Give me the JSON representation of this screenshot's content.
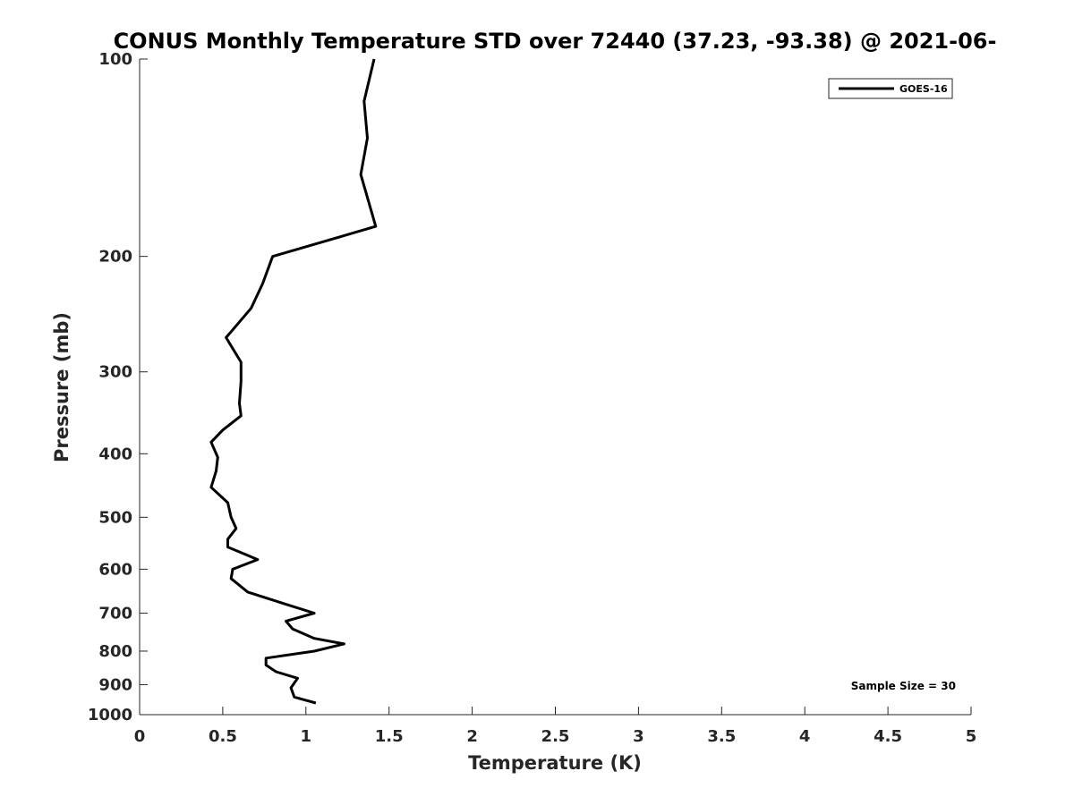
{
  "chart_data": {
    "type": "line",
    "title": "CONUS Monthly Temperature STD over 72440 (37.23, -93.38) @ 2021-06-",
    "xlabel": "Temperature (K)",
    "ylabel": "Pressure (mb)",
    "xlim": [
      0,
      5
    ],
    "ylim": [
      1000,
      100
    ],
    "yscale": "log",
    "y_reversed": true,
    "x_ticks": [
      "0",
      "0.5",
      "1",
      "1.5",
      "2",
      "2.5",
      "3",
      "3.5",
      "4",
      "4.5",
      "5"
    ],
    "y_ticks": [
      "100",
      "200",
      "300",
      "400",
      "500",
      "600",
      "700",
      "800",
      "900",
      "1000"
    ],
    "grid": false,
    "legend_position": "top-right",
    "annotation": "Sample Size = 30",
    "series": [
      {
        "name": "GOES-16",
        "color": "#000000",
        "x": [
          1.41,
          1.35,
          1.37,
          1.33,
          1.42,
          0.8,
          0.74,
          0.67,
          0.52,
          0.61,
          0.61,
          0.6,
          0.61,
          0.5,
          0.43,
          0.47,
          0.46,
          0.43,
          0.53,
          0.55,
          0.58,
          0.53,
          0.53,
          0.64,
          0.71,
          0.56,
          0.55,
          0.65,
          0.89,
          1.05,
          0.88,
          0.92,
          1.05,
          1.23,
          1.05,
          0.76,
          0.76,
          0.82,
          0.95,
          0.91,
          0.93,
          1.06
        ],
        "y": [
          100,
          116,
          132,
          150,
          180,
          200,
          220,
          240,
          266,
          290,
          310,
          335,
          350,
          368,
          384,
          405,
          425,
          450,
          475,
          500,
          520,
          540,
          555,
          570,
          580,
          600,
          620,
          650,
          680,
          700,
          720,
          740,
          765,
          780,
          800,
          820,
          840,
          860,
          880,
          910,
          940,
          960
        ]
      }
    ]
  }
}
